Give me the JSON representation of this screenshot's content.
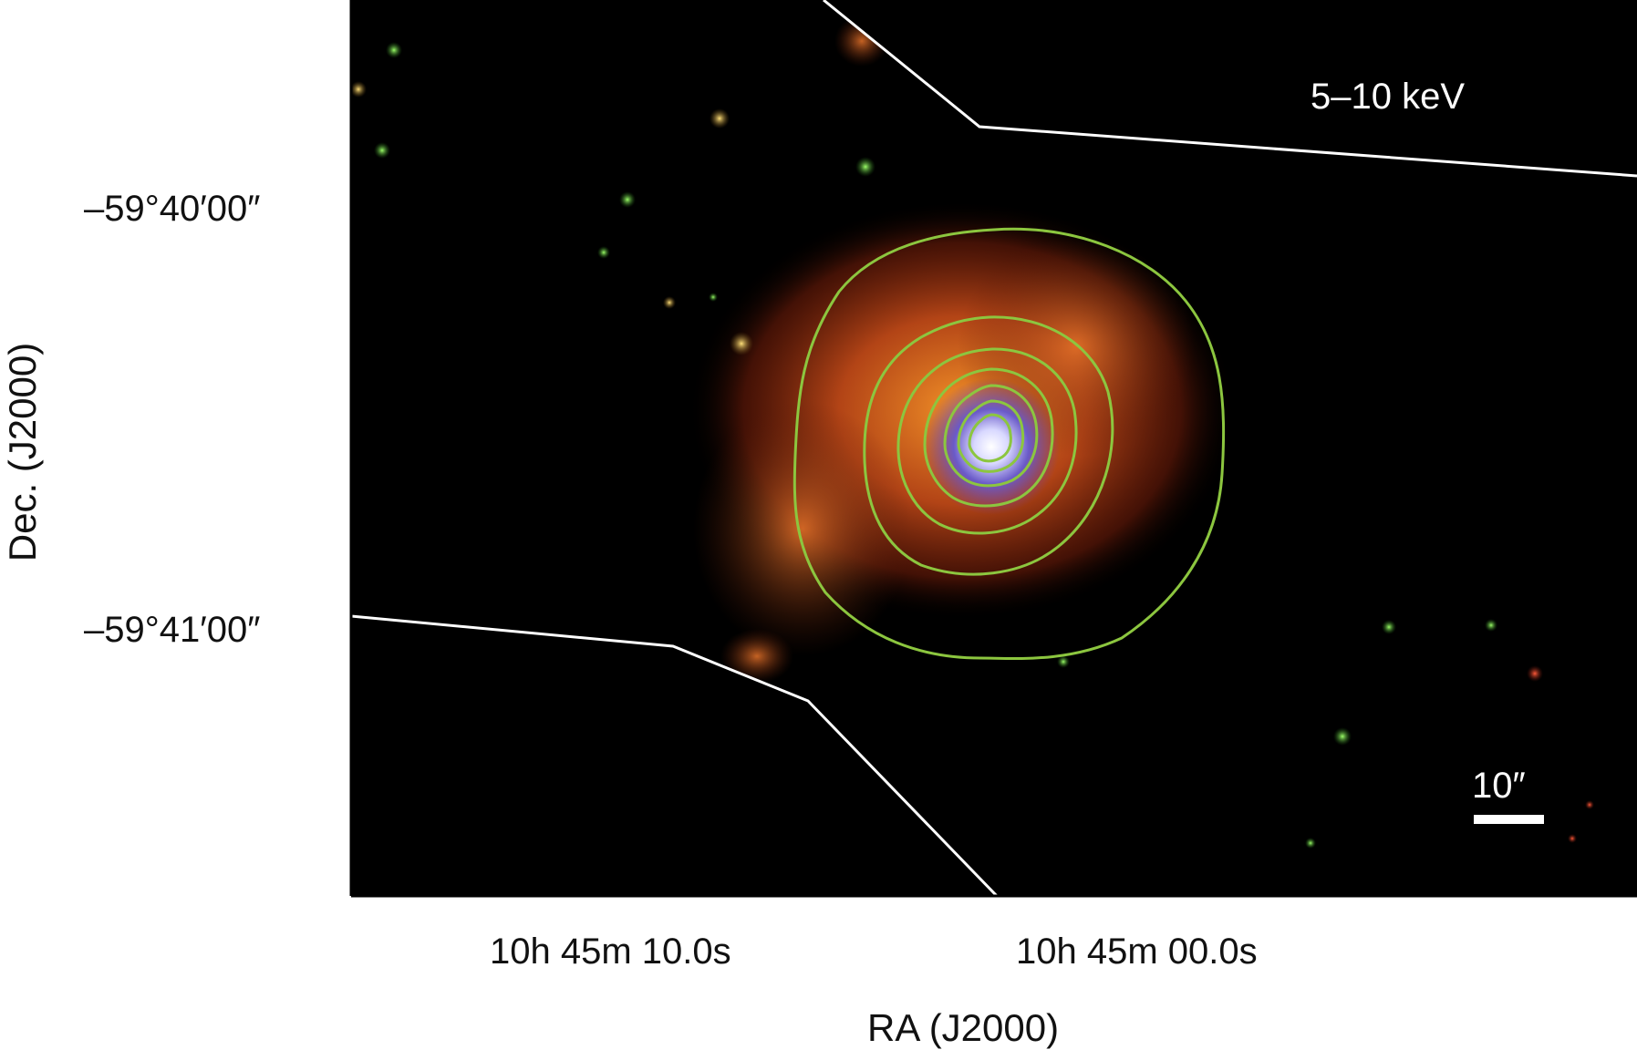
{
  "figure": {
    "energy_band": "5–10 keV",
    "scale_bar_label": "10″",
    "x_axis_title": "RA (J2000)",
    "y_axis_title": "Dec. (J2000)",
    "ra_tick_labels": [
      "10h 45m 10.0s",
      "10h 45m 00.0s"
    ],
    "dec_tick_labels": [
      "–59°40′00″",
      "–59°41′00″"
    ],
    "contour_color": "#8cc63f",
    "boundary_color": "#ffffff",
    "background_color": "#000000",
    "contour_levels_count": 7
  }
}
